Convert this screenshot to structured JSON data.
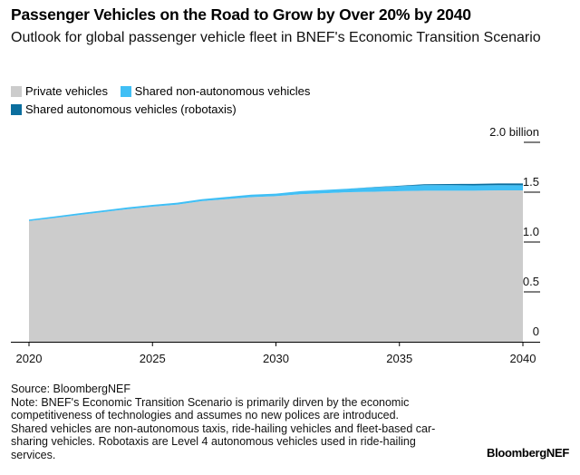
{
  "chart_data": {
    "type": "area",
    "stacked": true,
    "title": "Passenger Vehicles on the Road to Grow by Over 20% by 2040",
    "subtitle": "Outlook for global passenger vehicle fleet in BNEF's Economic Transition Scenario",
    "xlabel": "",
    "ylabel": "",
    "x": [
      2020,
      2021,
      2022,
      2023,
      2024,
      2025,
      2026,
      2027,
      2028,
      2029,
      2030,
      2031,
      2032,
      2033,
      2034,
      2035,
      2036,
      2037,
      2038,
      2039,
      2040
    ],
    "x_ticks": [
      "2020",
      "2025",
      "2030",
      "2035",
      "2040"
    ],
    "y_ticks": [
      "0",
      "0.5",
      "1.0",
      "1.5",
      "2.0 billion"
    ],
    "ylim": [
      0,
      2.0
    ],
    "y_unit": "billion",
    "y_axis_position": "right",
    "legend_position": "top-left",
    "series": [
      {
        "name": "Private vehicles",
        "color": "#cccccc",
        "values": [
          1.21,
          1.24,
          1.27,
          1.3,
          1.33,
          1.355,
          1.375,
          1.41,
          1.43,
          1.45,
          1.46,
          1.48,
          1.49,
          1.5,
          1.505,
          1.51,
          1.515,
          1.515,
          1.515,
          1.518,
          1.518
        ]
      },
      {
        "name": "Shared non-autonomous vehicles",
        "color": "#40bff5",
        "values": [
          0.015,
          0.016,
          0.017,
          0.017,
          0.018,
          0.018,
          0.019,
          0.02,
          0.022,
          0.025,
          0.025,
          0.03,
          0.033,
          0.036,
          0.045,
          0.05,
          0.055,
          0.055,
          0.053,
          0.052,
          0.051
        ]
      },
      {
        "name": "Shared autonomous vehicles (robotaxis)",
        "color": "#0b6e9e",
        "values": [
          0,
          0,
          0,
          0,
          0,
          0,
          0,
          0,
          0,
          0,
          0,
          0,
          0,
          0,
          0.002,
          0.005,
          0.01,
          0.012,
          0.015,
          0.018,
          0.018
        ]
      }
    ]
  },
  "footer": {
    "source": "Source: BloombergNEF",
    "note_lines": [
      "Note: BNEF's Economic Transition Scenario is primarily dirven by the economic",
      "competitiveness of technologies and assumes no new polices are introduced.",
      "Shared vehicles are non-autonomous taxis, ride-hailing vehicles and fleet-based car-",
      "sharing vehicles. Robotaxis are Level 4 autonomous vehicles used in ride-hailing",
      "services."
    ],
    "brand": "BloombergNEF"
  }
}
